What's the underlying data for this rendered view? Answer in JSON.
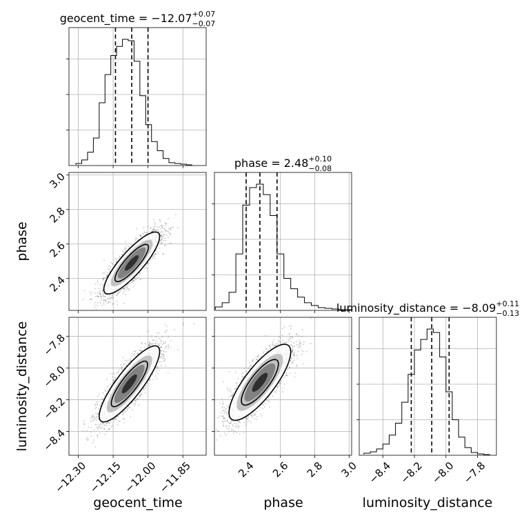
{
  "chart_data": {
    "type": "corner",
    "parameters": [
      "geocent_time",
      "phase",
      "luminosity_distance"
    ],
    "titles": [
      {
        "text": "geocent_time = −12.07",
        "sup": "+0.07",
        "sub": "−0.07"
      },
      {
        "text": "phase = 2.48",
        "sup": "+0.10",
        "sub": "−0.08"
      },
      {
        "text": "luminosity_distance = −8.09",
        "sup": "+0.11",
        "sub": "−0.13"
      }
    ],
    "axis_labels": [
      "geocent_time",
      "phase",
      "luminosity_distance"
    ],
    "ranges": [
      [
        -12.34,
        -11.75
      ],
      [
        2.215,
        3.015
      ],
      [
        -8.55,
        -7.68
      ]
    ],
    "ticks": [
      {
        "values": [
          -12.3,
          -12.15,
          -12.0,
          -11.85
        ],
        "labels": [
          "−12.30",
          "−12.15",
          "−12.00",
          "−11.85"
        ]
      },
      {
        "values": [
          2.4,
          2.6,
          2.8,
          3.0
        ],
        "labels": [
          "2.4",
          "2.6",
          "2.8",
          "3.0"
        ]
      },
      {
        "values": [
          -8.4,
          -8.2,
          -8.0,
          -7.8
        ],
        "labels": [
          "−8.4",
          "−8.2",
          "−8.0",
          "−7.8"
        ]
      }
    ],
    "quantiles": [
      [
        -12.14,
        -12.07,
        -12.0
      ],
      [
        2.4,
        2.48,
        2.58
      ],
      [
        -8.22,
        -8.09,
        -7.98
      ]
    ],
    "histograms": [
      {
        "bin_edges": [
          -12.31,
          -12.285,
          -12.26,
          -12.235,
          -12.21,
          -12.185,
          -12.16,
          -12.135,
          -12.11,
          -12.085,
          -12.06,
          -12.035,
          -12.01,
          -11.985,
          -11.96,
          -11.935,
          -11.91,
          -11.885,
          -11.86,
          -11.835,
          -11.81
        ],
        "counts": [
          2,
          7,
          18,
          38,
          88,
          128,
          155,
          168,
          178,
          176,
          147,
          98,
          57,
          33,
          20,
          9,
          3,
          2,
          1,
          0
        ]
      },
      {
        "bin_edges": [
          2.22,
          2.26,
          2.3,
          2.34,
          2.38,
          2.42,
          2.46,
          2.5,
          2.54,
          2.58,
          2.62,
          2.66,
          2.7,
          2.74,
          2.78,
          2.82,
          2.86,
          2.9,
          2.94,
          2.98,
          3.02
        ],
        "counts": [
          4,
          10,
          25,
          80,
          150,
          175,
          180,
          165,
          135,
          80,
          45,
          30,
          18,
          10,
          6,
          3,
          2,
          1,
          0,
          0
        ]
      },
      {
        "bin_edges": [
          -8.52,
          -8.48,
          -8.44,
          -8.4,
          -8.36,
          -8.32,
          -8.28,
          -8.24,
          -8.2,
          -8.16,
          -8.12,
          -8.08,
          -8.04,
          -8.0,
          -7.96,
          -7.92,
          -7.88,
          -7.84,
          -7.8,
          -7.76,
          -7.72
        ],
        "counts": [
          2,
          4,
          8,
          15,
          28,
          45,
          75,
          115,
          150,
          165,
          180,
          175,
          140,
          90,
          50,
          25,
          10,
          3,
          1,
          0
        ]
      }
    ],
    "pairs": [
      {
        "x": 0,
        "y": 1,
        "mean": [
          -12.07,
          2.49
        ],
        "sd": [
          0.06,
          0.09
        ],
        "rho": 0.85
      },
      {
        "x": 0,
        "y": 2,
        "mean": [
          -12.08,
          -8.1
        ],
        "sd": [
          0.065,
          0.12
        ],
        "rho": 0.85
      },
      {
        "x": 1,
        "y": 2,
        "mean": [
          2.48,
          -8.09
        ],
        "sd": [
          0.09,
          0.12
        ],
        "rho": 0.8
      }
    ],
    "grid": true,
    "scatter_color": "#333333",
    "contour_color": "#000000"
  }
}
